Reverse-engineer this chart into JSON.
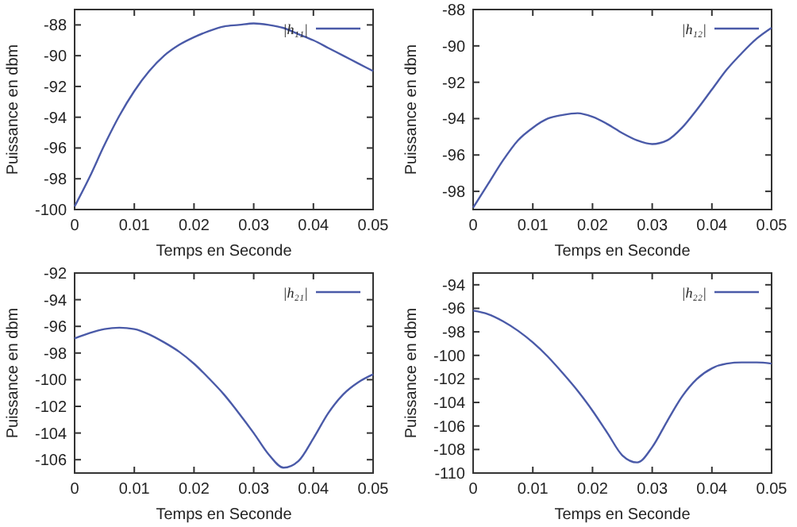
{
  "chart_data": [
    {
      "type": "line",
      "xlabel": "Temps en Seconde",
      "ylabel": "Puissance en dbm",
      "legend": "top right",
      "grid": false,
      "xlim": [
        0,
        0.05
      ],
      "xticks": [
        0,
        0.01,
        0.02,
        0.03,
        0.04,
        0.05
      ],
      "ylim": [
        -100,
        -87
      ],
      "yticks": [
        -100,
        -98,
        -96,
        -94,
        -92,
        -90,
        -88
      ],
      "x": [
        0,
        0.0025,
        0.005,
        0.0075,
        0.01,
        0.0125,
        0.015,
        0.0175,
        0.02,
        0.0225,
        0.025,
        0.0275,
        0.03,
        0.0325,
        0.035,
        0.0375,
        0.04,
        0.0425,
        0.045,
        0.0475,
        0.05
      ],
      "series": [
        {
          "name": "|h₁₁|",
          "color": "#4a5aa8",
          "values": [
            -99.8,
            -97.9,
            -95.8,
            -93.9,
            -92.3,
            -91.0,
            -90.0,
            -89.3,
            -88.8,
            -88.4,
            -88.1,
            -88.0,
            -87.9,
            -88.0,
            -88.2,
            -88.6,
            -89.0,
            -89.5,
            -90.0,
            -90.5,
            -91.0
          ]
        }
      ]
    },
    {
      "type": "line",
      "xlabel": "Temps en Seconde",
      "ylabel": "Puissance en dbm",
      "legend": "top right",
      "grid": false,
      "xlim": [
        0,
        0.05
      ],
      "xticks": [
        0,
        0.01,
        0.02,
        0.03,
        0.04,
        0.05
      ],
      "ylim": [
        -99,
        -88
      ],
      "yticks": [
        -98,
        -96,
        -94,
        -92,
        -90,
        -88
      ],
      "x": [
        0,
        0.0025,
        0.005,
        0.0075,
        0.01,
        0.0125,
        0.015,
        0.0175,
        0.02,
        0.0225,
        0.025,
        0.0275,
        0.03,
        0.0325,
        0.035,
        0.0375,
        0.04,
        0.0425,
        0.045,
        0.0475,
        0.05
      ],
      "series": [
        {
          "name": "|h₁₂|",
          "color": "#4a5aa8",
          "values": [
            -98.9,
            -97.6,
            -96.3,
            -95.2,
            -94.5,
            -94.0,
            -93.8,
            -93.7,
            -93.9,
            -94.3,
            -94.8,
            -95.2,
            -95.4,
            -95.2,
            -94.5,
            -93.5,
            -92.4,
            -91.3,
            -90.4,
            -89.6,
            -89.0
          ]
        }
      ]
    },
    {
      "type": "line",
      "xlabel": "Temps en Seconde",
      "ylabel": "Puissance en dbm",
      "legend": "top right",
      "grid": false,
      "xlim": [
        0,
        0.05
      ],
      "xticks": [
        0,
        0.01,
        0.02,
        0.03,
        0.04,
        0.05
      ],
      "ylim": [
        -107,
        -92
      ],
      "yticks": [
        -106,
        -104,
        -102,
        -100,
        -98,
        -96,
        -94,
        -92
      ],
      "x": [
        0,
        0.0025,
        0.005,
        0.0075,
        0.01,
        0.0125,
        0.015,
        0.0175,
        0.02,
        0.0225,
        0.025,
        0.0275,
        0.03,
        0.0325,
        0.035,
        0.0375,
        0.04,
        0.0425,
        0.045,
        0.0475,
        0.05
      ],
      "series": [
        {
          "name": "|h₂₁|",
          "color": "#4a5aa8",
          "values": [
            -96.9,
            -96.5,
            -96.2,
            -96.1,
            -96.2,
            -96.6,
            -97.2,
            -97.9,
            -98.8,
            -99.9,
            -101.1,
            -102.5,
            -104.0,
            -105.6,
            -106.6,
            -106.1,
            -104.4,
            -102.5,
            -101.1,
            -100.2,
            -99.6
          ]
        }
      ]
    },
    {
      "type": "line",
      "xlabel": "Temps en Seconde",
      "ylabel": "Puissance en dbm",
      "legend": "top right",
      "grid": false,
      "xlim": [
        0,
        0.05
      ],
      "xticks": [
        0,
        0.01,
        0.02,
        0.03,
        0.04,
        0.05
      ],
      "ylim": [
        -110,
        -93
      ],
      "yticks": [
        -110,
        -108,
        -106,
        -104,
        -102,
        -100,
        -98,
        -96,
        -94
      ],
      "x": [
        0,
        0.0025,
        0.005,
        0.0075,
        0.01,
        0.0125,
        0.015,
        0.0175,
        0.02,
        0.0225,
        0.025,
        0.0275,
        0.03,
        0.0325,
        0.035,
        0.0375,
        0.04,
        0.0425,
        0.045,
        0.0475,
        0.05
      ],
      "series": [
        {
          "name": "|h₂₂|",
          "color": "#4a5aa8",
          "values": [
            -96.2,
            -96.5,
            -97.1,
            -97.9,
            -98.9,
            -100.1,
            -101.5,
            -103.0,
            -104.7,
            -106.6,
            -108.5,
            -109.1,
            -107.8,
            -105.6,
            -103.5,
            -102.0,
            -101.1,
            -100.7,
            -100.6,
            -100.6,
            -100.7
          ]
        }
      ]
    }
  ]
}
